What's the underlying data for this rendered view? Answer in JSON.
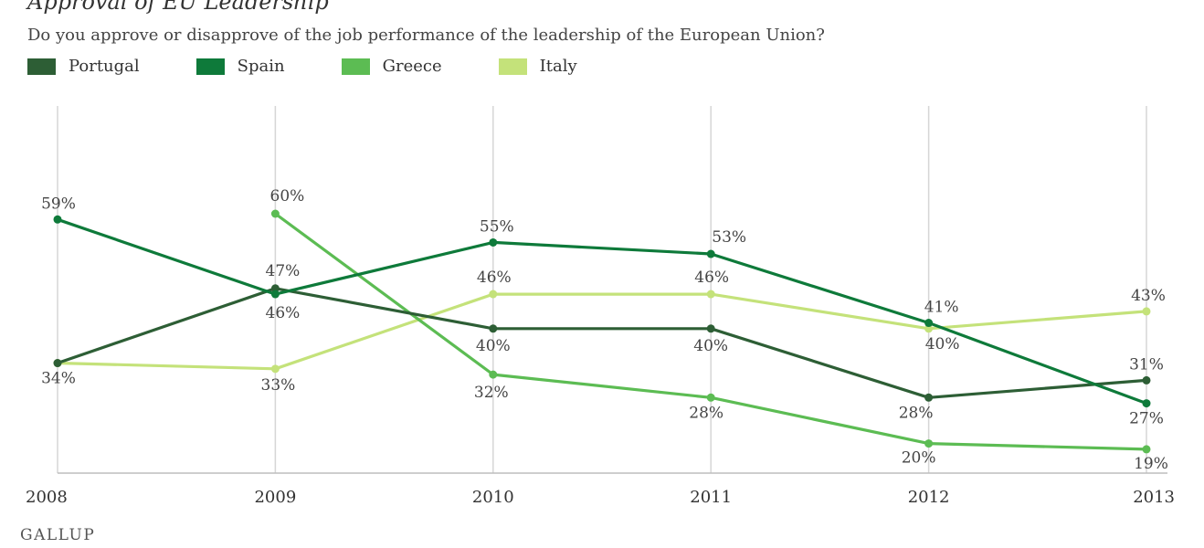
{
  "chart_data": {
    "type": "line",
    "title": "Approval of EU Leadership",
    "subtitle": "Do you approve or disapprove of the job performance of the leadership of the European Union?",
    "x": [
      "2008",
      "2009",
      "2010",
      "2011",
      "2012",
      "2013"
    ],
    "ylim": [
      0,
      70
    ],
    "grid": "vertical",
    "legend": "top-left",
    "series": [
      {
        "name": "Portugal",
        "color": "#2d5e35",
        "values": [
          34,
          47,
          40,
          40,
          28,
          31
        ],
        "labels": [
          "",
          "",
          "40%",
          "40%",
          "28%",
          "31%"
        ]
      },
      {
        "name": "Spain",
        "color": "#0e7a3a",
        "values": [
          59,
          46,
          55,
          53,
          41,
          27
        ],
        "labels": [
          "59%",
          "46%",
          "55%",
          "53%",
          "41%",
          "27%"
        ]
      },
      {
        "name": "Greece",
        "color": "#5cbc53",
        "values": [
          null,
          60,
          32,
          28,
          20,
          19
        ],
        "labels": [
          "",
          "60%",
          "32%",
          "28%",
          "20%",
          "19%"
        ]
      },
      {
        "name": "Italy",
        "color": "#c4e27a",
        "values": [
          34,
          33,
          46,
          46,
          40,
          43
        ],
        "labels": [
          "34%",
          "33%",
          "46%",
          "46%",
          "40%",
          "43%"
        ]
      }
    ],
    "extra_labels": [
      {
        "series": "Portugal",
        "index": 1,
        "text": "47%"
      }
    ]
  },
  "brand": "GALLUP"
}
